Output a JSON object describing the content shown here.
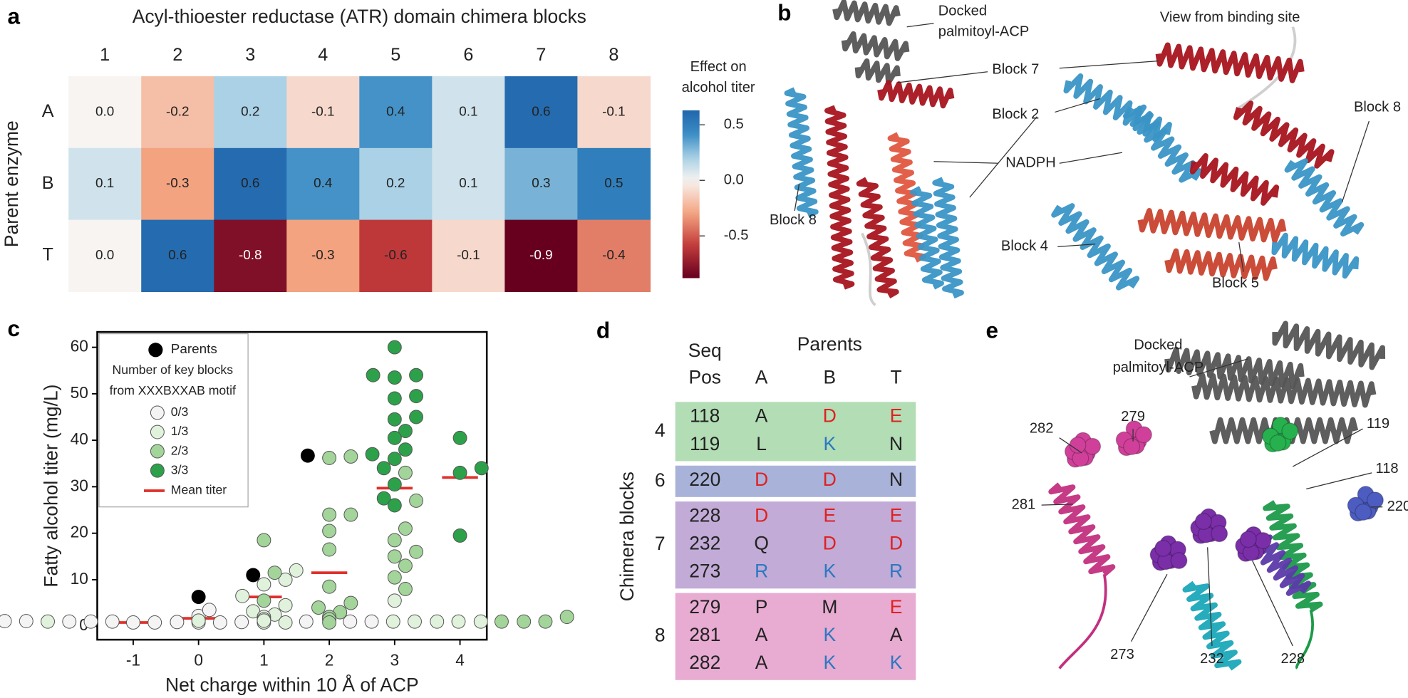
{
  "panel_labels": [
    "a",
    "b",
    "c",
    "d",
    "e"
  ],
  "chart_data": [
    {
      "type": "heatmap",
      "title": "Acyl-thioester reductase (ATR) domain chimera blocks",
      "x_categories": [
        "1",
        "2",
        "3",
        "4",
        "5",
        "6",
        "7",
        "8"
      ],
      "y_categories": [
        "A",
        "B",
        "T"
      ],
      "y_label": "Parent enzyme",
      "values": [
        [
          0.0,
          -0.2,
          0.2,
          -0.1,
          0.4,
          0.1,
          0.6,
          -0.1
        ],
        [
          0.1,
          -0.3,
          0.6,
          0.4,
          0.2,
          0.1,
          0.3,
          0.5
        ],
        [
          0.0,
          0.6,
          -0.8,
          -0.3,
          -0.6,
          -0.1,
          -0.9,
          -0.4
        ]
      ],
      "value_labels": [
        [
          "0.0",
          "-0.2",
          "0.2",
          "-0.1",
          "0.4",
          "0.1",
          "0.6",
          "-0.1"
        ],
        [
          "0.1",
          "-0.3",
          "0.6",
          "0.4",
          "0.2",
          "0.1",
          "0.3",
          "0.5"
        ],
        [
          "0.0",
          "0.6",
          "-0.8",
          "-0.3",
          "-0.6",
          "-0.1",
          "-0.9",
          "-0.4"
        ]
      ],
      "colorbar_label": [
        "Effect on",
        "alcohol titer"
      ],
      "clim": [
        -0.88,
        0.63
      ],
      "cticks": [
        0.5,
        {
          "value": 0,
          "label": "0.0"
        },
        -0.5
      ],
      "colormap": {
        "negative": [
          "#f7f4f2",
          "#f4a582",
          "#c23b3b",
          "#67001f"
        ],
        "positive": [
          "#f7f4f2",
          "#a6cfe4",
          "#3a8cc4",
          "#2166ac"
        ]
      }
    },
    {
      "type": "strip",
      "x_label": "Net charge within 10 Å of ACP",
      "y_label": "Fatty alcohol titer (mg/L)",
      "xlim": [
        -1.55,
        4.41
      ],
      "ylim": [
        -2.9,
        63.3
      ],
      "xticks": [
        -1,
        0,
        1,
        2,
        3,
        4
      ],
      "yticks": [
        0,
        10,
        20,
        30,
        40,
        50,
        60
      ],
      "legend": "upper left",
      "legend_title": [
        "Number of key blocks",
        "from XXXBXXAB motif"
      ],
      "series": [
        {
          "name": "Parents",
          "color": "#000000",
          "x": [
            0,
            1,
            2
          ],
          "values": [
            6.3,
            11,
            36.7
          ]
        },
        {
          "name": "0/3",
          "color": "#f4f4f4",
          "x": [
            -1,
            -1,
            0,
            0,
            0,
            0,
            0,
            0,
            0,
            0,
            0,
            0,
            0,
            0,
            0,
            0,
            1,
            1
          ],
          "values": [
            0.8,
            0.8,
            0.8,
            0.9,
            1,
            1,
            1.1,
            1.2,
            0.8,
            1,
            1.3,
            0.9,
            1.1,
            1,
            2.2,
            3.5,
            1,
            1
          ]
        },
        {
          "name": "1/3",
          "color": "#e0f2dc",
          "x": [
            0,
            0,
            1,
            1,
            1,
            1,
            1,
            1,
            1,
            1,
            1,
            1,
            1,
            1,
            1,
            1,
            2,
            2,
            2,
            2,
            3,
            3
          ],
          "values": [
            1,
            1.2,
            12,
            10,
            9,
            6.5,
            4.5,
            3.2,
            2.5,
            2,
            1.5,
            1,
            1,
            0.8,
            0.8,
            1.2,
            1,
            1,
            1.5,
            2,
            5.5,
            1
          ]
        },
        {
          "name": "2/3",
          "color": "#a3d49a",
          "x": [
            1,
            1,
            1,
            2,
            2,
            2,
            2,
            2,
            2,
            2,
            2,
            2,
            2,
            2,
            2,
            2,
            2,
            3,
            3,
            3,
            3,
            3,
            3,
            3,
            3,
            3,
            3,
            3,
            3
          ],
          "values": [
            18.5,
            11.5,
            5.5,
            36.5,
            36.2,
            24,
            24,
            20.5,
            16.5,
            8.5,
            5,
            4,
            3,
            2,
            1.5,
            1,
            0.8,
            33,
            27,
            21,
            18.5,
            16,
            15,
            13,
            10.5,
            8,
            2,
            1,
            1
          ]
        },
        {
          "name": "3/3",
          "color": "#2ca14a",
          "x": [
            2,
            3,
            3,
            3,
            3,
            3,
            3,
            3,
            3,
            3,
            3,
            3,
            3,
            3,
            3,
            3,
            3,
            4,
            4,
            4,
            4
          ],
          "values": [
            37,
            60,
            54,
            54,
            53.5,
            49.5,
            49,
            45,
            44.5,
            42,
            40.5,
            38,
            36,
            34,
            30.5,
            27.5,
            26,
            40.5,
            34,
            33,
            19.5
          ]
        }
      ],
      "mean": {
        "name": "Mean titer",
        "color": "#e0302a",
        "x": [
          -1,
          0,
          1,
          2,
          3,
          4
        ],
        "values": [
          0.8,
          1.7,
          6.3,
          11.5,
          29.7,
          32
        ]
      }
    }
  ],
  "structure_b": {
    "acp_label": [
      "Docked",
      "palmitoyl-ACP"
    ],
    "view_label": "View from binding site",
    "labels": [
      "Block 7",
      "Block 2",
      "Block 8",
      "NADPH",
      "Block 8",
      "Block 4",
      "Block 5"
    ]
  },
  "table_d": {
    "parents_header": "Parents",
    "seqpos_header": [
      "Seq",
      "Pos"
    ],
    "parent_columns": [
      "A",
      "B",
      "T"
    ],
    "row_axis_label": "Chimera blocks",
    "residue_colors": {
      "D": "#e02020",
      "E": "#e02020",
      "K": "#2a78c0",
      "R": "#2a78c0"
    },
    "groups": [
      {
        "block": "4",
        "color": "#b3ddb5",
        "rows": [
          [
            "118",
            "A",
            "D",
            "E"
          ],
          [
            "119",
            "L",
            "K",
            "N"
          ]
        ]
      },
      {
        "block": "6",
        "color": "#a9b3da",
        "rows": [
          [
            "220",
            "D",
            "D",
            "N"
          ]
        ]
      },
      {
        "block": "7",
        "color": "#c2abd6",
        "rows": [
          [
            "228",
            "D",
            "E",
            "E"
          ],
          [
            "232",
            "Q",
            "D",
            "D"
          ],
          [
            "273",
            "R",
            "K",
            "R"
          ]
        ]
      },
      {
        "block": "8",
        "color": "#e8abd2",
        "rows": [
          [
            "279",
            "P",
            "M",
            "E"
          ],
          [
            "281",
            "A",
            "K",
            "A"
          ],
          [
            "282",
            "A",
            "K",
            "K"
          ]
        ]
      }
    ]
  },
  "structure_e": {
    "acp_label": [
      "Docked",
      "palmitoyl-ACP"
    ],
    "labels": [
      "282",
      "279",
      "119",
      "118",
      "281",
      "220",
      "273",
      "232",
      "228"
    ]
  }
}
